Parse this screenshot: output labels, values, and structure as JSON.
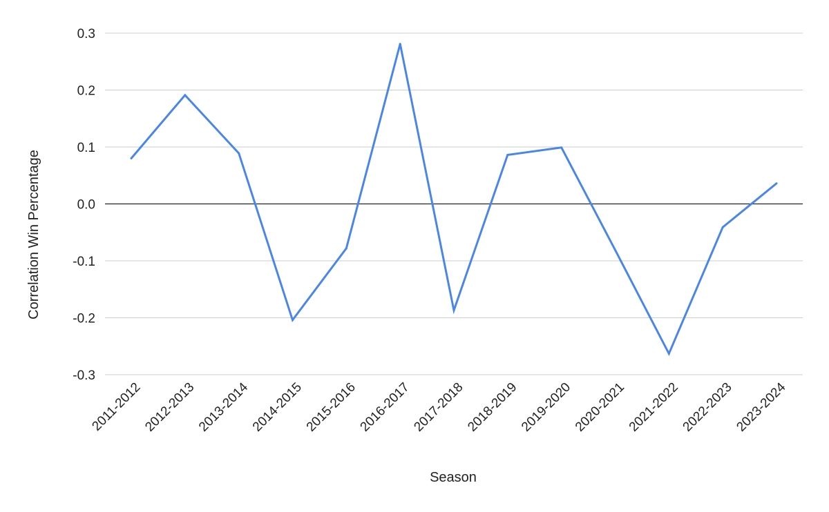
{
  "chart_data": {
    "type": "line",
    "categories": [
      "2011-2012",
      "2012-2013",
      "2013-2014",
      "2014-2015",
      "2015-2016",
      "2016-2017",
      "2017-2018",
      "2018-2019",
      "2019-2020",
      "2020-2021",
      "2021-2022",
      "2022-2023",
      "2023-2024"
    ],
    "series": [
      {
        "values": [
          0.08,
          0.191,
          0.089,
          -0.204,
          -0.078,
          0.281,
          -0.187,
          0.086,
          0.099,
          -0.081,
          -0.263,
          -0.041,
          0.036
        ],
        "color": "#4a86e8"
      }
    ],
    "yticks": [
      {
        "value": 0.3,
        "label": "0.3"
      },
      {
        "value": 0.2,
        "label": "0.2"
      },
      {
        "value": 0.1,
        "label": "0.1"
      },
      {
        "value": 0.0,
        "label": "0.0"
      },
      {
        "value": -0.1,
        "label": "-0.1"
      },
      {
        "value": -0.2,
        "label": "-0.2"
      },
      {
        "value": -0.3,
        "label": "-0.3"
      }
    ],
    "xlabel": "Season",
    "ylabel": "Correlation Win Percentage",
    "ylim": [
      -0.3,
      0.3
    ],
    "grid": true,
    "zero_line": true,
    "colors": {
      "line": "#4a86e8",
      "grid": "#cccccc",
      "zero_line": "#222222",
      "text": "#222222"
    }
  }
}
